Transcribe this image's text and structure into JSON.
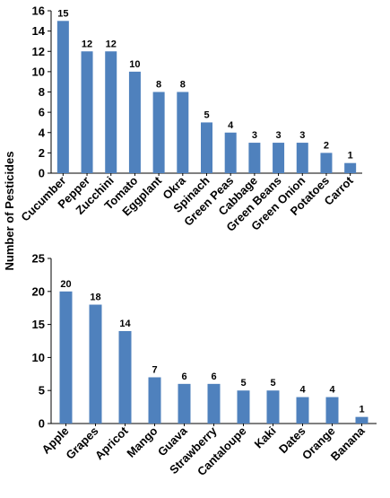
{
  "figure": {
    "shared_ylabel": "Number of Pesticides"
  },
  "colors": {
    "bar": "#4F81BD",
    "axis": "#000000",
    "text": "#000000"
  },
  "chart_data": [
    {
      "type": "bar",
      "title": "",
      "xlabel": "",
      "ylabel": "Number of Pesticides",
      "categories": [
        "Cucumber",
        "Pepper",
        "Zucchini",
        "Tomato",
        "Eggplant",
        "Okra",
        "Spinach",
        "Green Peas",
        "Cabbage",
        "Green Beans",
        "Green Onion",
        "Potatoes",
        "Carrot"
      ],
      "values": [
        15,
        12,
        12,
        10,
        8,
        8,
        5,
        4,
        3,
        3,
        3,
        2,
        1
      ],
      "ylim": [
        0,
        16
      ],
      "yticks": [
        0,
        2,
        4,
        6,
        8,
        10,
        12,
        14,
        16
      ],
      "grid": false,
      "data_labels": true
    },
    {
      "type": "bar",
      "title": "",
      "xlabel": "",
      "ylabel": "Number of Pesticides",
      "categories": [
        "Apple",
        "Grapes",
        "Apricot",
        "Mango",
        "Guava",
        "Strawberry",
        "Cantaloupe",
        "Kaki",
        "Dates",
        "Orange",
        "Banana"
      ],
      "values": [
        20,
        18,
        14,
        7,
        6,
        6,
        5,
        5,
        4,
        4,
        1
      ],
      "ylim": [
        0,
        25
      ],
      "yticks": [
        0,
        5,
        10,
        15,
        20,
        25
      ],
      "grid": false,
      "data_labels": true
    }
  ]
}
